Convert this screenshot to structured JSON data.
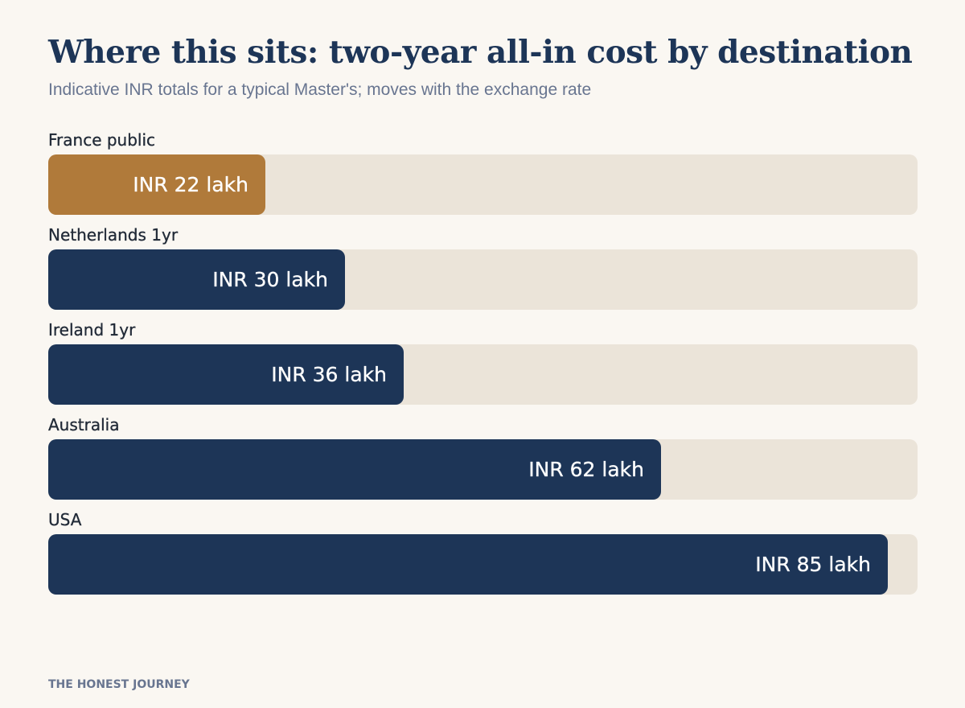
{
  "header": {
    "title": "Where this sits: two-year all-in cost by destination",
    "subtitle": "Indicative INR totals for a typical Master's; moves with the exchange rate"
  },
  "colors": {
    "background": "#faf7f2",
    "track": "#ebe4d9",
    "bar_default": "#1d3557",
    "bar_highlight": "#b07a3a",
    "title": "#1d3557",
    "subtitle": "#687590"
  },
  "chart_data": {
    "type": "bar",
    "orientation": "horizontal",
    "unit": "INR lakh",
    "xlim": [
      0,
      88
    ],
    "grid": false,
    "legend": "none",
    "categories": [
      "France public",
      "Netherlands 1yr",
      "Ireland 1yr",
      "Australia",
      "USA"
    ],
    "values": [
      22,
      30,
      36,
      62,
      85
    ],
    "value_labels": [
      "INR 22 lakh",
      "INR 30 lakh",
      "INR 36 lakh",
      "INR 62 lakh",
      "INR 85 lakh"
    ],
    "highlight_category": "France public"
  },
  "footer": {
    "brand": "THE HONEST JOURNEY"
  }
}
